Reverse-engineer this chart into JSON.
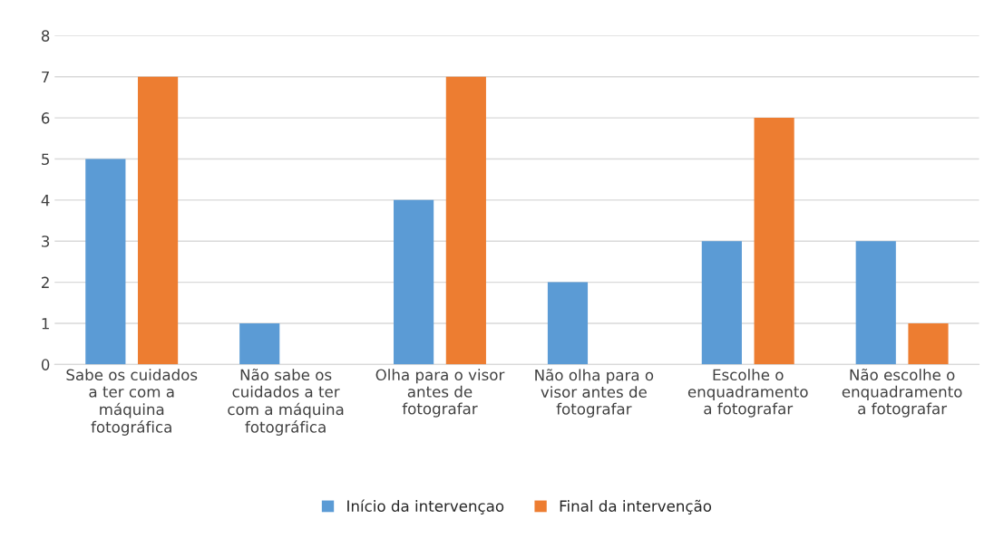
{
  "chart_data": {
    "type": "bar",
    "categories": [
      "Sabe os cuidados\na ter com a\nmáquina\nfotográfica",
      "Não sabe os\ncuidados a ter\ncom a máquina\nfotográfica",
      "Olha para o visor\nantes de\nfotografar",
      "Não olha para o\nvisor antes de\nfotografar",
      "Escolhe o\nenquadramento\na fotografar",
      "Não escolhe o\nenquadramento\na fotografar"
    ],
    "series": [
      {
        "name": "Início da intervençao",
        "color": "#5b9bd5",
        "values": [
          5,
          1,
          4,
          2,
          3,
          3
        ]
      },
      {
        "name": "Final da intervenção",
        "color": "#ed7d31",
        "values": [
          7,
          0,
          7,
          0,
          6,
          1
        ]
      }
    ],
    "ylim": [
      0,
      8
    ],
    "yticks": [
      0,
      1,
      2,
      3,
      4,
      5,
      6,
      7,
      8
    ],
    "grid": "y",
    "legend": "bottom"
  }
}
